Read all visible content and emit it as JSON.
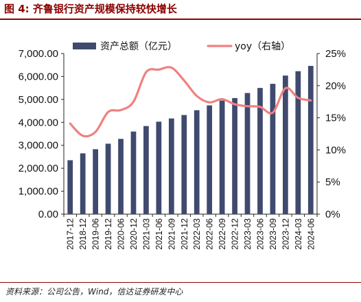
{
  "figure": {
    "label": "图 4:",
    "title": "齐鲁银行资产规模保持较快增长",
    "source": "资料来源：公司公告，Wind，信达证券研发中心"
  },
  "chart_data": {
    "type": "bar",
    "categories": [
      "2017-12",
      "2018-12",
      "2019-06",
      "2019-12",
      "2020-06",
      "2020-12",
      "2021-03",
      "2021-06",
      "2021-09",
      "2021-12",
      "2022-03",
      "2022-06",
      "2022-09",
      "2022-12",
      "2023-03",
      "2023-06",
      "2023-09",
      "2023-12",
      "2024-03",
      "2024-06"
    ],
    "series": [
      {
        "name": "资产总额（亿元）",
        "type": "bar",
        "axis": "left",
        "color": "#3f4a6e",
        "values": [
          2350,
          2650,
          2830,
          3070,
          3280,
          3600,
          3840,
          4030,
          4170,
          4320,
          4530,
          4740,
          4950,
          5060,
          5280,
          5500,
          5680,
          6040,
          6230,
          6460
        ]
      },
      {
        "name": "yoy（右轴）",
        "type": "line",
        "axis": "right",
        "color": "#f08080",
        "values": [
          14.1,
          12.2,
          12.8,
          15.9,
          16.2,
          17.5,
          22.1,
          22.5,
          22.8,
          20.8,
          18.4,
          17.4,
          17.9,
          17.1,
          16.8,
          16.7,
          15.8,
          19.6,
          18.1,
          17.7
        ]
      }
    ],
    "yleft": {
      "min": 0,
      "max": 7000,
      "ticks": [
        "0.00",
        "1,000.00",
        "2,000.00",
        "3,000.00",
        "4,000.00",
        "5,000.00",
        "6,000.00",
        "7,000.00"
      ]
    },
    "yright": {
      "min": 0,
      "max": 25,
      "ticks": [
        "0%",
        "5%",
        "10%",
        "15%",
        "20%",
        "25%"
      ]
    },
    "legend": {
      "position": "top",
      "items": [
        "资产总额（亿元）",
        "yoy（右轴）"
      ]
    },
    "grid": false
  }
}
